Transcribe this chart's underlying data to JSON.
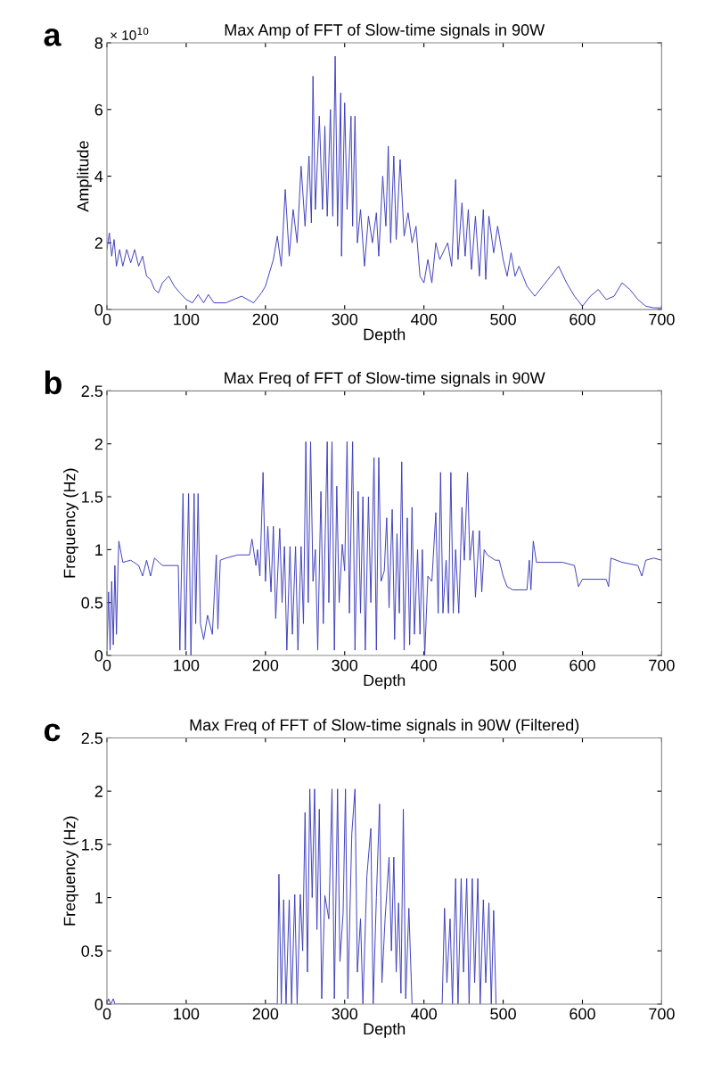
{
  "chart_data": [
    {
      "type": "line",
      "title": "Max Amp of FFT of Slow-time signals in 90W",
      "xlabel": "Depth",
      "ylabel": "Amplitude",
      "xlim": [
        0,
        700
      ],
      "ylim": [
        0,
        8
      ],
      "xticks": [
        0,
        100,
        200,
        300,
        400,
        500,
        600,
        700
      ],
      "yticks": [
        0,
        2,
        4,
        6,
        8
      ],
      "grid": false,
      "annotations": [
        "a",
        "× 10$^{10}$"
      ],
      "x": [
        0,
        3,
        6,
        9,
        12,
        16,
        20,
        25,
        30,
        35,
        40,
        45,
        50,
        55,
        60,
        65,
        70,
        78,
        85,
        92,
        100,
        108,
        115,
        122,
        128,
        135,
        150,
        170,
        185,
        195,
        200,
        210,
        215,
        220,
        225,
        230,
        235,
        240,
        245,
        250,
        255,
        258,
        260,
        263,
        268,
        272,
        275,
        278,
        282,
        285,
        288,
        291,
        295,
        296,
        300,
        303,
        308,
        310,
        313,
        316,
        320,
        325,
        330,
        335,
        340,
        343,
        348,
        352,
        355,
        358,
        362,
        365,
        370,
        375,
        380,
        385,
        390,
        395,
        400,
        405,
        410,
        415,
        420,
        430,
        435,
        440,
        443,
        448,
        452,
        456,
        460,
        465,
        470,
        475,
        478,
        482,
        488,
        493,
        500,
        505,
        510,
        515,
        520,
        530,
        540,
        550,
        560,
        570,
        580,
        590,
        600,
        610,
        620,
        630,
        640,
        650,
        660,
        670,
        680,
        690,
        700
      ],
      "series": [
        {
          "color": "#3d3dbd",
          "values": [
            1.8,
            2.3,
            1.6,
            2.1,
            1.3,
            1.8,
            1.3,
            1.8,
            1.4,
            1.8,
            1.3,
            1.6,
            1.0,
            0.9,
            0.6,
            0.5,
            0.8,
            1.0,
            0.7,
            0.5,
            0.3,
            0.2,
            0.45,
            0.2,
            0.45,
            0.2,
            0.2,
            0.4,
            0.2,
            0.5,
            0.7,
            1.5,
            2.2,
            1.3,
            3.6,
            1.6,
            3.0,
            2.0,
            4.3,
            2.5,
            4.6,
            2.6,
            7.0,
            3.0,
            5.8,
            3.0,
            5.5,
            2.8,
            6.0,
            2.8,
            7.6,
            2.5,
            6.5,
            1.6,
            6.2,
            3.0,
            5.8,
            2.5,
            5.8,
            2.0,
            3.0,
            1.3,
            2.8,
            2.0,
            2.9,
            1.6,
            4.0,
            2.5,
            4.9,
            2.0,
            4.6,
            2.1,
            4.5,
            2.2,
            2.9,
            2.0,
            2.5,
            1.0,
            0.8,
            1.5,
            0.8,
            2.0,
            1.5,
            2.0,
            1.3,
            3.9,
            1.5,
            3.2,
            1.6,
            3.0,
            1.2,
            2.8,
            1.0,
            3.0,
            0.9,
            2.8,
            1.7,
            2.5,
            1.5,
            1.0,
            1.7,
            1.0,
            1.3,
            0.7,
            0.4,
            0.7,
            1.0,
            1.3,
            0.8,
            0.4,
            0.1,
            0.4,
            0.6,
            0.3,
            0.4,
            0.8,
            0.6,
            0.3,
            0.1,
            0.05,
            0.05
          ]
        }
      ]
    },
    {
      "type": "line",
      "title": "Max Freq of FFT of Slow-time signals in 90W",
      "xlabel": "Depth",
      "ylabel": "Frequency (Hz)",
      "xlim": [
        0,
        700
      ],
      "ylim": [
        0,
        2.5
      ],
      "xticks": [
        0,
        100,
        200,
        300,
        400,
        500,
        600,
        700
      ],
      "yticks": [
        0,
        0.5,
        1,
        1.5,
        2,
        2.5
      ],
      "grid": false,
      "annotations": [
        "b"
      ],
      "x": [
        0,
        2,
        4,
        6,
        8,
        10,
        12,
        14,
        15,
        20,
        30,
        40,
        45,
        50,
        55,
        60,
        70,
        90,
        92,
        96,
        99,
        103,
        106,
        110,
        112,
        115,
        118,
        122,
        127,
        133,
        138,
        140,
        143,
        150,
        165,
        180,
        183,
        188,
        190,
        193,
        197,
        200,
        203,
        207,
        210,
        213,
        218,
        221,
        224,
        227,
        231,
        234,
        238,
        241,
        245,
        248,
        251,
        254,
        257,
        260,
        263,
        266,
        270,
        273,
        278,
        280,
        284,
        287,
        290,
        293,
        297,
        300,
        303,
        306,
        310,
        313,
        317,
        320,
        323,
        326,
        330,
        333,
        337,
        340,
        343,
        346,
        350,
        353,
        356,
        360,
        363,
        366,
        369,
        372,
        375,
        379,
        382,
        385,
        388,
        392,
        395,
        398,
        401,
        405,
        410,
        415,
        418,
        421,
        424,
        428,
        431,
        434,
        437,
        440,
        444,
        448,
        451,
        455,
        458,
        462,
        465,
        470,
        473,
        476,
        480,
        490,
        495,
        500,
        505,
        512,
        530,
        533,
        535,
        538,
        542,
        560,
        575,
        590,
        595,
        600,
        630,
        633,
        636,
        650,
        670,
        675,
        680,
        690,
        700
      ],
      "series": [
        {
          "color": "#3d3dbd",
          "values": [
            0.05,
            0.6,
            0.05,
            0.7,
            0.1,
            0.85,
            0.2,
            0.85,
            1.08,
            0.88,
            0.9,
            0.85,
            0.75,
            0.9,
            0.75,
            0.92,
            0.85,
            0.85,
            0.05,
            1.53,
            0.05,
            1.53,
            0.0,
            1.53,
            0.3,
            1.53,
            0.3,
            0.15,
            0.38,
            0.2,
            0.95,
            0.25,
            0.9,
            0.92,
            0.95,
            0.95,
            1.1,
            0.85,
            1.0,
            0.75,
            1.73,
            0.7,
            1.22,
            0.6,
            1.22,
            0.35,
            1.2,
            0.5,
            1.03,
            0.05,
            1.03,
            0.2,
            1.03,
            0.05,
            1.03,
            0.3,
            2.02,
            0.5,
            2.02,
            0.7,
            1.0,
            0.05,
            1.55,
            0.3,
            2.02,
            0.5,
            2.02,
            0.05,
            1.6,
            0.5,
            1.05,
            0.8,
            2.02,
            0.4,
            2.02,
            0.05,
            1.55,
            0.4,
            1.5,
            0.05,
            1.5,
            0.5,
            1.87,
            0.05,
            1.87,
            0.7,
            0.8,
            1.3,
            0.45,
            1.38,
            0.15,
            1.15,
            0.4,
            1.83,
            0.05,
            1.3,
            0.1,
            1.4,
            0.2,
            1.0,
            0.2,
            1.0,
            0.0,
            0.75,
            0.7,
            1.35,
            0.4,
            1.73,
            0.4,
            0.9,
            0.4,
            1.73,
            0.4,
            1.0,
            0.4,
            1.4,
            0.9,
            1.73,
            0.9,
            1.18,
            0.55,
            1.18,
            0.6,
            1.0,
            0.95,
            0.9,
            0.9,
            0.75,
            0.65,
            0.62,
            0.62,
            0.9,
            0.62,
            1.08,
            0.88,
            0.88,
            0.88,
            0.85,
            0.65,
            0.72,
            0.72,
            0.65,
            0.92,
            0.88,
            0.85,
            0.75,
            0.9,
            0.92,
            0.9
          ]
        }
      ]
    },
    {
      "type": "line",
      "title": "Max Freq of FFT of Slow-time signals in 90W (Filtered)",
      "xlabel": "Depth",
      "ylabel": "Frequency (Hz)",
      "xlim": [
        0,
        700
      ],
      "ylim": [
        0,
        2.5
      ],
      "xticks": [
        0,
        100,
        200,
        300,
        400,
        500,
        600,
        700
      ],
      "yticks": [
        0,
        0.5,
        1,
        1.5,
        2,
        2.5
      ],
      "grid": false,
      "annotations": [
        "c"
      ],
      "x": [
        0,
        2,
        5,
        8,
        10,
        215,
        217,
        220,
        223,
        226,
        230,
        233,
        237,
        240,
        244,
        247,
        250,
        253,
        256,
        259,
        262,
        265,
        268,
        271,
        275,
        280,
        284,
        287,
        291,
        294,
        298,
        301,
        304,
        309,
        313,
        316,
        320,
        323,
        328,
        333,
        336,
        340,
        344,
        347,
        351,
        356,
        359,
        362,
        365,
        368,
        371,
        374,
        377,
        381,
        385,
        423,
        426,
        429,
        433,
        436,
        440,
        443,
        447,
        450,
        454,
        457,
        461,
        464,
        468,
        471,
        475,
        478,
        482,
        485,
        488,
        491
      ],
      "series": [
        {
          "color": "#3d3dbd",
          "values": [
            0,
            0.05,
            0,
            0.05,
            0,
            0,
            1.22,
            0,
            0.98,
            0,
            0.98,
            0,
            1.03,
            0,
            1.03,
            0.5,
            1.8,
            0.3,
            2.02,
            1.0,
            2.02,
            0.7,
            1.83,
            0.05,
            1.02,
            0.8,
            2.02,
            0.05,
            2.02,
            0.4,
            0.85,
            2.02,
            0.05,
            1.6,
            2.02,
            0.3,
            0.8,
            0.0,
            1.2,
            1.65,
            0,
            1.0,
            1.88,
            0.2,
            0.8,
            1.38,
            0.5,
            1.38,
            0.3,
            0.95,
            0.1,
            1.83,
            0.05,
            0.9,
            0.0,
            0,
            0.9,
            0.2,
            0.8,
            0.0,
            1.18,
            0.0,
            1.18,
            0.3,
            1.18,
            0.0,
            1.18,
            0.2,
            1.18,
            0.0,
            0.98,
            0.2,
            0.95,
            0.0,
            0.88,
            0.0
          ]
        }
      ]
    }
  ]
}
